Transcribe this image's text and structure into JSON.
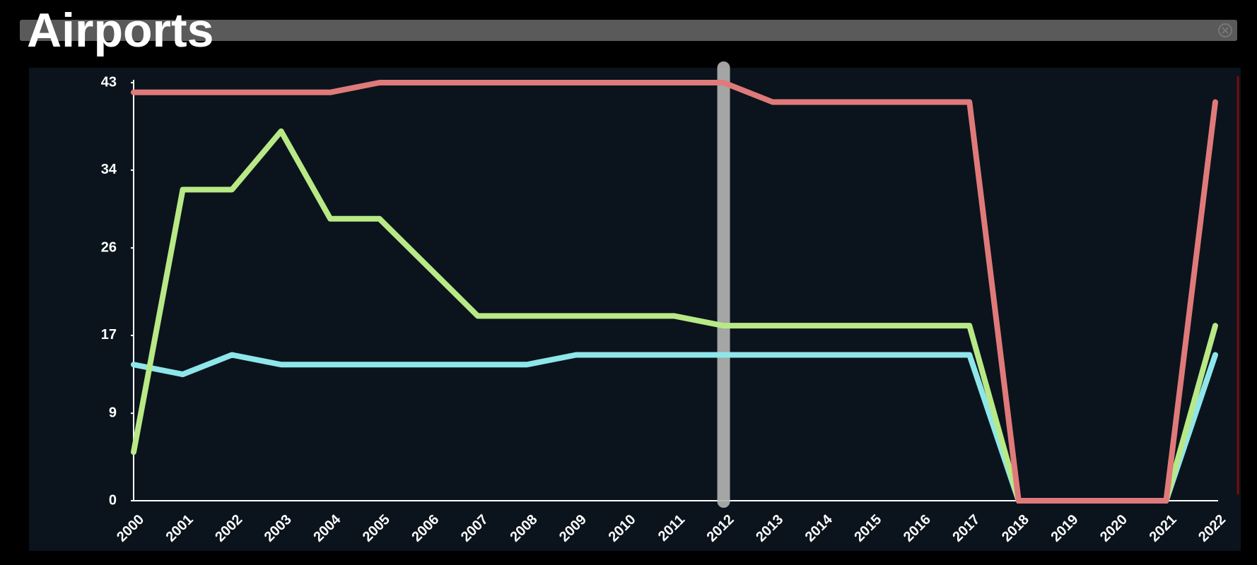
{
  "chart_data": {
    "type": "line",
    "title": "Airports",
    "categories": [
      "2000",
      "2001",
      "2002",
      "2003",
      "2004",
      "2005",
      "2006",
      "2007",
      "2008",
      "2009",
      "2010",
      "2011",
      "2012",
      "2013",
      "2014",
      "2015",
      "2016",
      "2017",
      "2018",
      "2019",
      "2020",
      "2021",
      "2022"
    ],
    "series": [
      {
        "color": "#e07a7a",
        "values": [
          42,
          42,
          42,
          42,
          42,
          43,
          43,
          43,
          43,
          43,
          43,
          43,
          43,
          41,
          41,
          41,
          41,
          41,
          0,
          0,
          0,
          0,
          41
        ]
      },
      {
        "color": "#b8e986",
        "values": [
          5,
          32,
          32,
          38,
          29,
          29,
          24,
          19,
          19,
          19,
          19,
          19,
          18,
          18,
          18,
          18,
          18,
          18,
          0,
          0,
          0,
          0,
          18
        ]
      },
      {
        "color": "#8ee6ea",
        "values": [
          14,
          13,
          15,
          14,
          14,
          14,
          14,
          14,
          14,
          15,
          15,
          15,
          15,
          15,
          15,
          15,
          15,
          15,
          0,
          0,
          0,
          0,
          15
        ]
      }
    ],
    "ylim": [
      0,
      43
    ],
    "yticks": [
      0,
      9,
      17,
      26,
      34,
      43
    ]
  }
}
